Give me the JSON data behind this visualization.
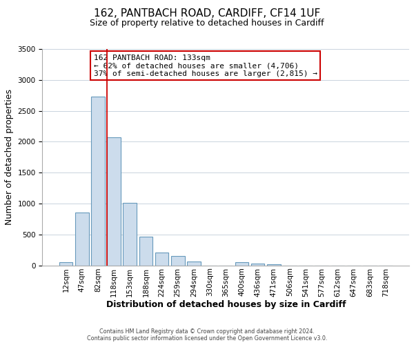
{
  "title": "162, PANTBACH ROAD, CARDIFF, CF14 1UF",
  "subtitle": "Size of property relative to detached houses in Cardiff",
  "xlabel": "Distribution of detached houses by size in Cardiff",
  "ylabel": "Number of detached properties",
  "bar_labels": [
    "12sqm",
    "47sqm",
    "82sqm",
    "118sqm",
    "153sqm",
    "188sqm",
    "224sqm",
    "259sqm",
    "294sqm",
    "330sqm",
    "365sqm",
    "400sqm",
    "436sqm",
    "471sqm",
    "506sqm",
    "541sqm",
    "577sqm",
    "612sqm",
    "647sqm",
    "683sqm",
    "718sqm"
  ],
  "bar_values": [
    55,
    855,
    2730,
    2070,
    1010,
    460,
    210,
    150,
    60,
    0,
    0,
    50,
    30,
    15,
    0,
    0,
    0,
    0,
    0,
    0,
    0
  ],
  "bar_color": "#ccdcec",
  "bar_edge_color": "#6699bb",
  "vline_index": 3,
  "vline_color": "#cc0000",
  "ylim": [
    0,
    3500
  ],
  "yticks": [
    0,
    500,
    1000,
    1500,
    2000,
    2500,
    3000,
    3500
  ],
  "annotation_title": "162 PANTBACH ROAD: 133sqm",
  "annotation_line1": "← 62% of detached houses are smaller (4,706)",
  "annotation_line2": "37% of semi-detached houses are larger (2,815) →",
  "annotation_box_facecolor": "#ffffff",
  "annotation_box_edgecolor": "#cc0000",
  "footer_line1": "Contains HM Land Registry data © Crown copyright and database right 2024.",
  "footer_line2": "Contains public sector information licensed under the Open Government Licence v3.0.",
  "background_color": "#ffffff",
  "grid_color": "#c0ccd8",
  "title_fontsize": 11,
  "subtitle_fontsize": 9,
  "axis_label_fontsize": 9,
  "tick_fontsize": 7.5
}
